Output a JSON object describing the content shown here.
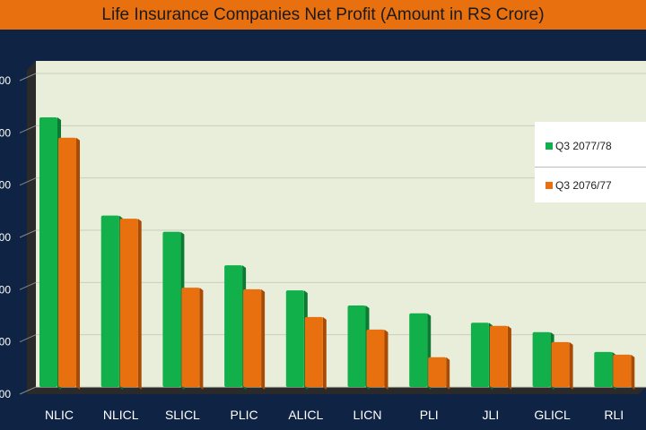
{
  "chart_data": {
    "type": "bar",
    "title": "Life Insurance Companies Net Profit (Amount in RS Crore)",
    "categories": [
      "NLIC",
      "NLICL",
      "SLICL",
      "PLIC",
      "ALICL",
      "LICN",
      "PLI",
      "JLI",
      "GLICL",
      "RLI"
    ],
    "series": [
      {
        "name": "Q3 2077/78",
        "color": "#12b04a",
        "values": [
          516,
          328,
          297,
          233,
          185,
          156,
          141,
          123,
          105,
          67
        ]
      },
      {
        "name": "Q3 2076/77",
        "color": "#e8700f",
        "values": [
          477,
          322,
          190,
          187,
          134,
          110,
          57,
          117,
          86,
          62
        ]
      }
    ],
    "ylim": [
      0,
      600
    ],
    "yticks": [
      "00",
      "00",
      "00",
      "00",
      "00",
      "00",
      "00"
    ],
    "legend": "right",
    "xlabel": "",
    "ylabel": ""
  }
}
